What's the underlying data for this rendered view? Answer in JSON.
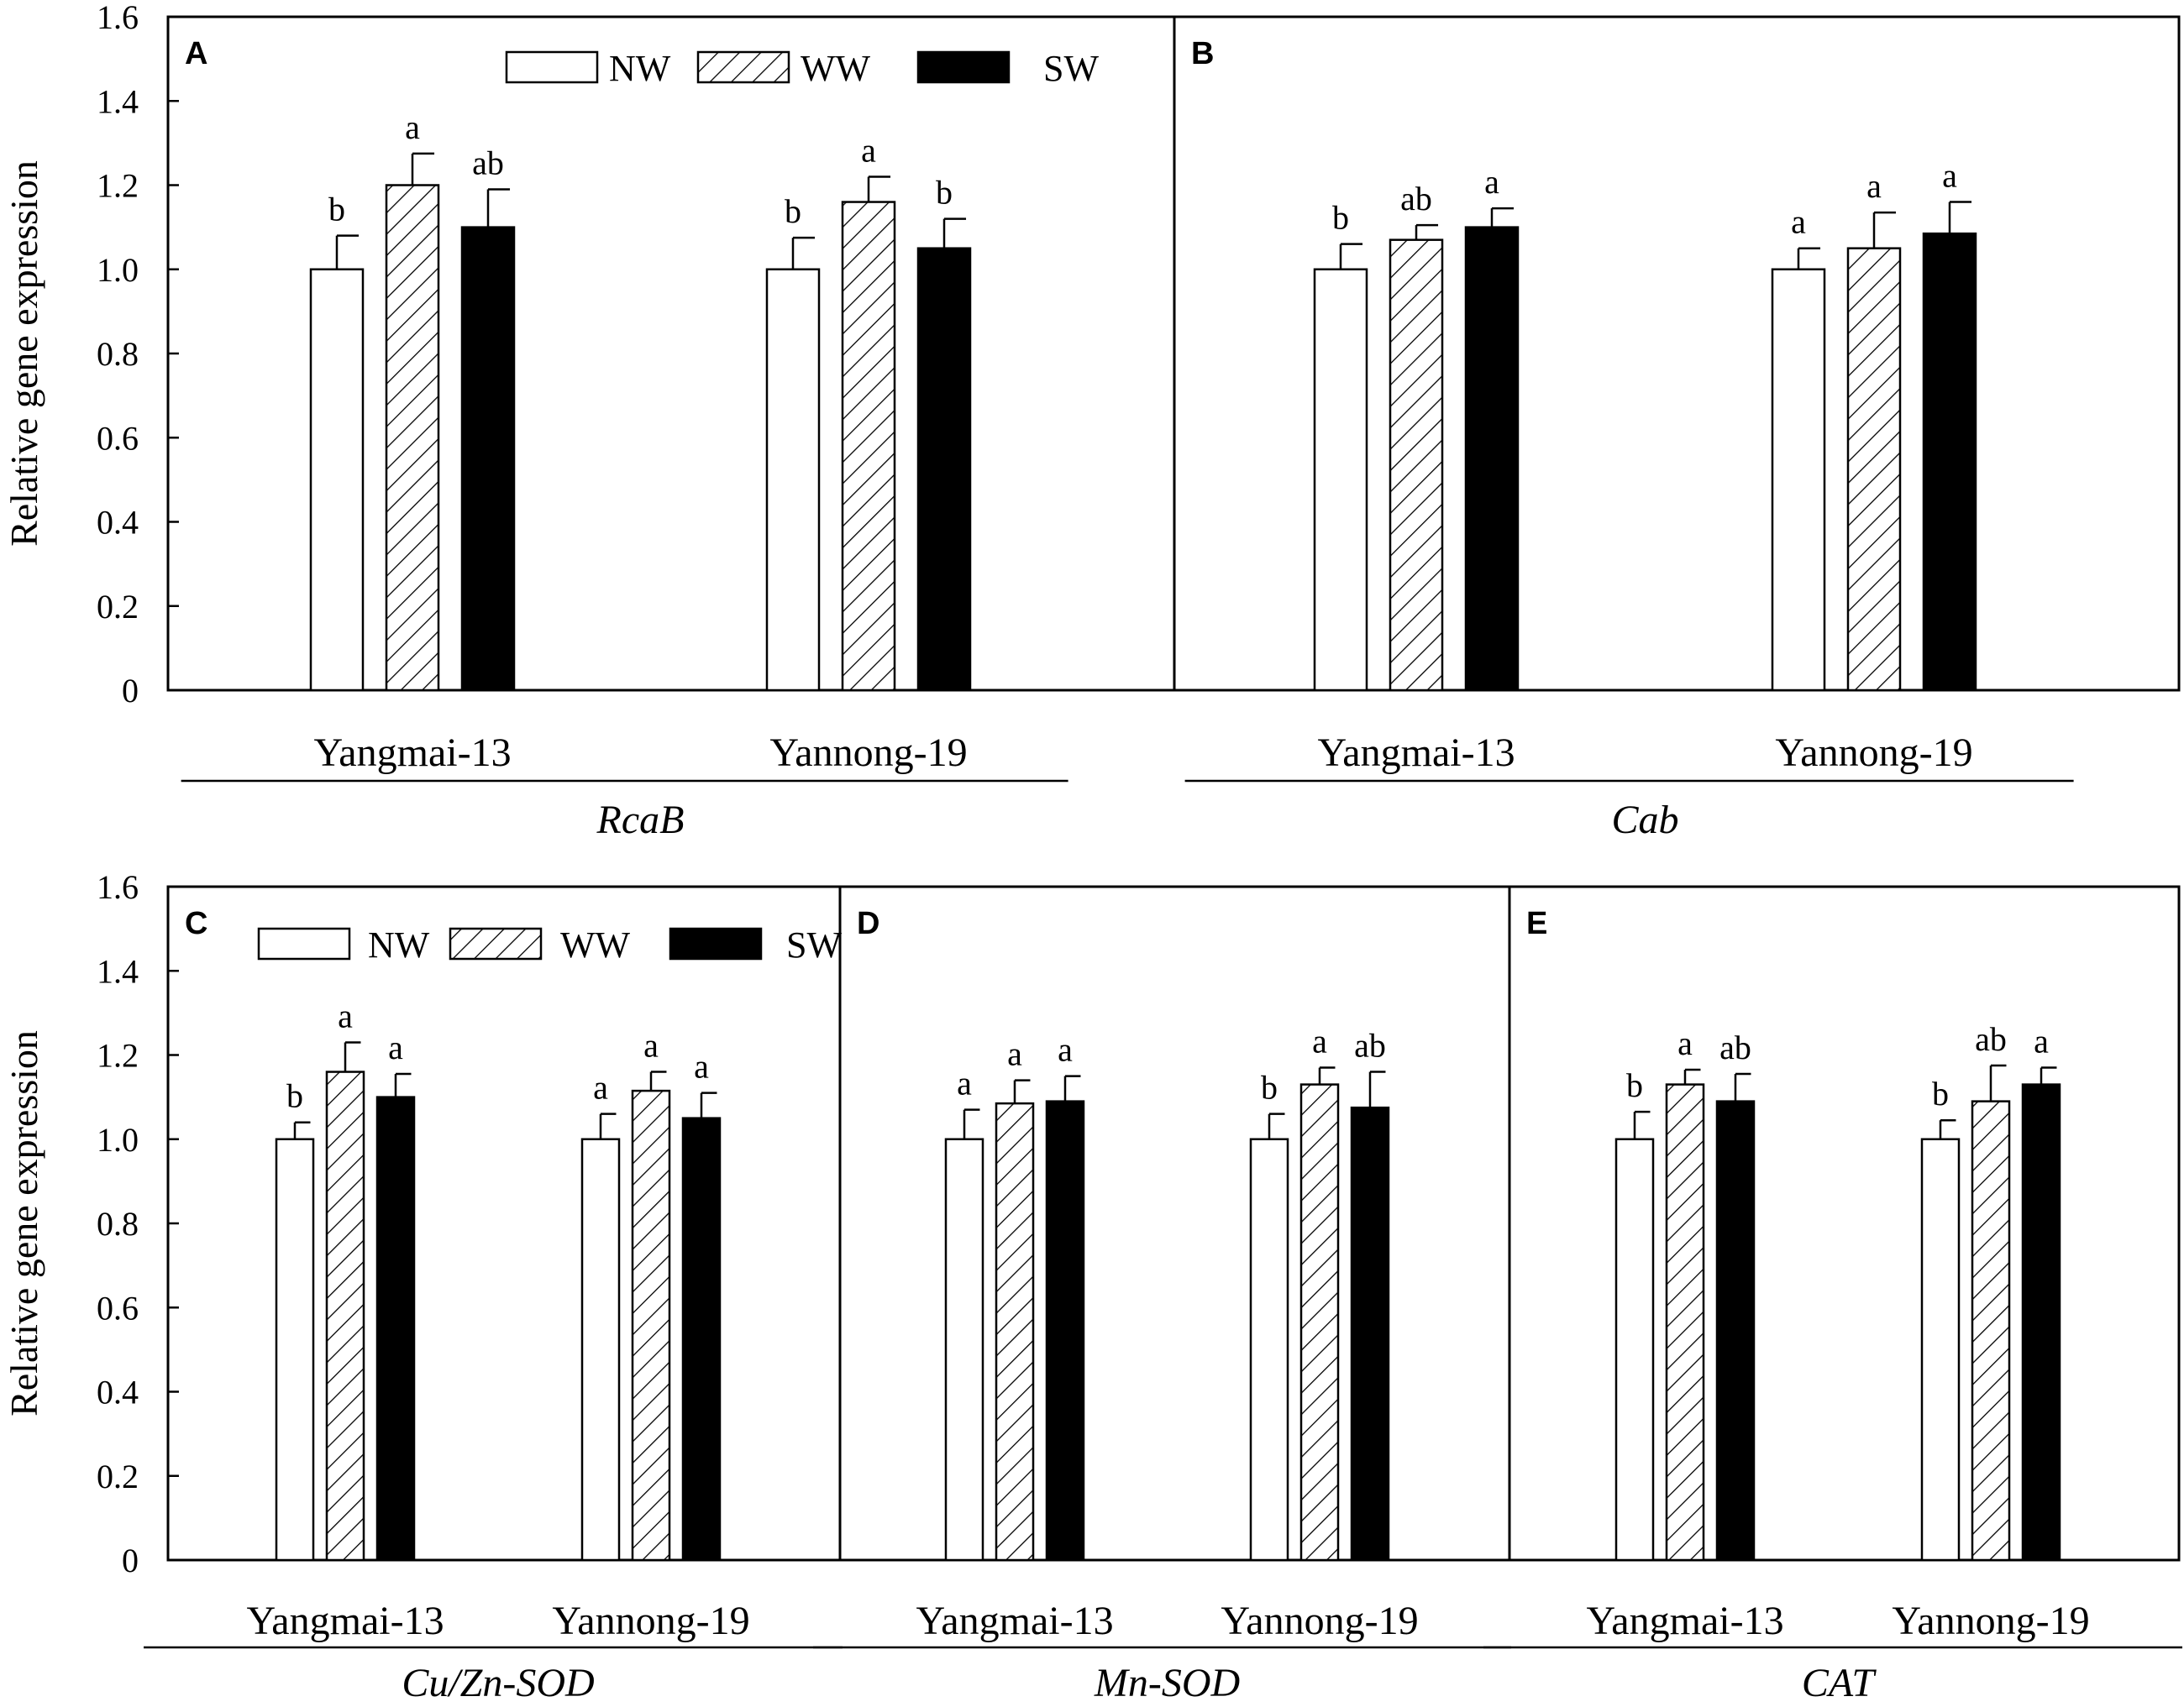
{
  "figure": {
    "y_axis_title": "Relative gene expression",
    "y_ticks": [
      "0",
      "0.2",
      "0.4",
      "0.6",
      "0.8",
      "1.0",
      "1.2",
      "1.4",
      "1.6"
    ],
    "legend_entries": [
      "NW",
      "WW",
      "SW"
    ],
    "colors": {
      "NW": "#ffffff",
      "WW": "hatched",
      "SW": "#000000",
      "stroke": "#000000"
    }
  },
  "chart_data": [
    {
      "panel": "A",
      "gene": "RcaB",
      "type": "bar",
      "ylim": [
        0,
        1.6
      ],
      "categories": [
        "Yangmai-13",
        "Yannong-19"
      ],
      "series": [
        {
          "name": "NW",
          "values": [
            1.0,
            1.0
          ],
          "errors": [
            0.08,
            0.075
          ],
          "sig": [
            "b",
            "b"
          ]
        },
        {
          "name": "WW",
          "values": [
            1.2,
            1.16
          ],
          "errors": [
            0.075,
            0.06
          ],
          "sig": [
            "a",
            "a"
          ]
        },
        {
          "name": "SW",
          "values": [
            1.1,
            1.05
          ],
          "errors": [
            0.09,
            0.07
          ],
          "sig": [
            "ab",
            "b"
          ]
        }
      ]
    },
    {
      "panel": "B",
      "gene": "Cab",
      "type": "bar",
      "ylim": [
        0,
        1.6
      ],
      "categories": [
        "Yangmai-13",
        "Yannong-19"
      ],
      "series": [
        {
          "name": "NW",
          "values": [
            1.0,
            1.0
          ],
          "errors": [
            0.06,
            0.05
          ],
          "sig": [
            "b",
            "a"
          ]
        },
        {
          "name": "WW",
          "values": [
            1.07,
            1.05
          ],
          "errors": [
            0.035,
            0.085
          ],
          "sig": [
            "ab",
            "a"
          ]
        },
        {
          "name": "SW",
          "values": [
            1.1,
            1.085
          ],
          "errors": [
            0.045,
            0.075
          ],
          "sig": [
            "a",
            "a"
          ]
        }
      ]
    },
    {
      "panel": "C",
      "gene": "Cu/Zn-SOD",
      "type": "bar",
      "ylim": [
        0,
        1.6
      ],
      "categories": [
        "Yangmai-13",
        "Yannong-19"
      ],
      "series": [
        {
          "name": "NW",
          "values": [
            1.0,
            1.0
          ],
          "errors": [
            0.04,
            0.06
          ],
          "sig": [
            "b",
            "a"
          ]
        },
        {
          "name": "WW",
          "values": [
            1.16,
            1.115
          ],
          "errors": [
            0.07,
            0.045
          ],
          "sig": [
            "a",
            "a"
          ]
        },
        {
          "name": "SW",
          "values": [
            1.1,
            1.05
          ],
          "errors": [
            0.055,
            0.06
          ],
          "sig": [
            "a",
            "a"
          ]
        }
      ]
    },
    {
      "panel": "D",
      "gene": "Mn-SOD",
      "type": "bar",
      "ylim": [
        0,
        1.6
      ],
      "categories": [
        "Yangmai-13",
        "Yannong-19"
      ],
      "series": [
        {
          "name": "NW",
          "values": [
            1.0,
            1.0
          ],
          "errors": [
            0.07,
            0.06
          ],
          "sig": [
            "a",
            "b"
          ]
        },
        {
          "name": "WW",
          "values": [
            1.085,
            1.13
          ],
          "errors": [
            0.055,
            0.04
          ],
          "sig": [
            "a",
            "a"
          ]
        },
        {
          "name": "SW",
          "values": [
            1.09,
            1.075
          ],
          "errors": [
            0.06,
            0.085
          ],
          "sig": [
            "a",
            "ab"
          ]
        }
      ]
    },
    {
      "panel": "E",
      "gene": "CAT",
      "type": "bar",
      "ylim": [
        0,
        1.6
      ],
      "categories": [
        "Yangmai-13",
        "Yannong-19"
      ],
      "series": [
        {
          "name": "NW",
          "values": [
            1.0,
            1.0
          ],
          "errors": [
            0.065,
            0.045
          ],
          "sig": [
            "b",
            "b"
          ]
        },
        {
          "name": "WW",
          "values": [
            1.13,
            1.09
          ],
          "errors": [
            0.035,
            0.085
          ],
          "sig": [
            "a",
            "ab"
          ]
        },
        {
          "name": "SW",
          "values": [
            1.09,
            1.13
          ],
          "errors": [
            0.065,
            0.04
          ],
          "sig": [
            "ab",
            "a"
          ]
        }
      ]
    }
  ]
}
